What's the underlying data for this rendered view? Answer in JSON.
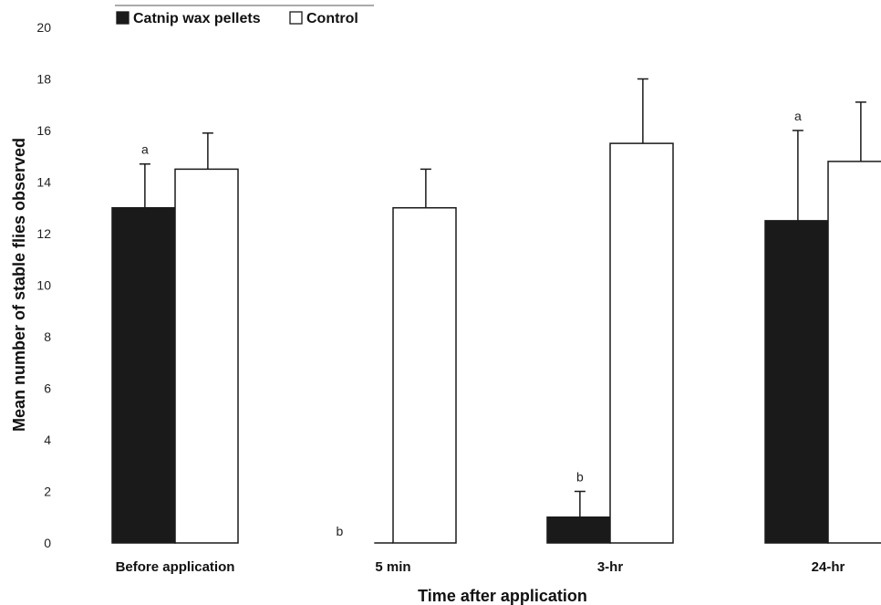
{
  "chart_data": {
    "type": "bar",
    "categories": [
      "Before application",
      "5 min",
      "3-hr",
      "24-hr"
    ],
    "series": [
      {
        "name": "Catnip wax pellets",
        "color": "#1a1a1a",
        "values": [
          13,
          0,
          1,
          12.5
        ],
        "errors": [
          1.7,
          0,
          1,
          3.5
        ],
        "annotations": [
          "a",
          "b",
          "b",
          "a"
        ]
      },
      {
        "name": "Control",
        "color": "#ffffff",
        "values": [
          14.5,
          13,
          15.5,
          14.8
        ],
        "errors": [
          1.4,
          1.5,
          2.5,
          2.3
        ],
        "annotations": [
          "",
          "",
          "",
          ""
        ]
      }
    ],
    "title": "",
    "xlabel": "Time after application",
    "ylabel": "Mean number of stable flies observed",
    "ylim": [
      0,
      20
    ],
    "yticks": [
      0,
      2,
      4,
      6,
      8,
      10,
      12,
      14,
      16,
      18,
      20
    ],
    "grid": false,
    "legend_position": "top-left"
  }
}
